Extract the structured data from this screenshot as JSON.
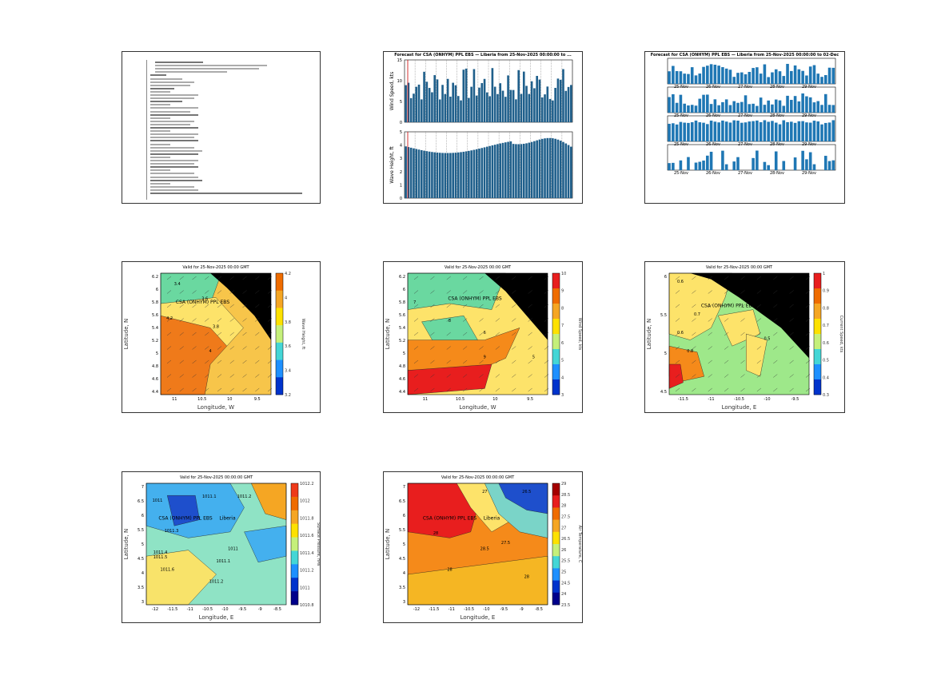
{
  "report_panel": {
    "lines": [
      {
        "w": 60
      },
      {
        "w": 140
      },
      {
        "w": 130
      },
      {
        "w": 90
      },
      {
        "w": 20
      },
      {
        "w": 40
      },
      {
        "w": 55
      },
      {
        "w": 50
      },
      {
        "w": 30
      },
      {
        "w": 25
      },
      {
        "w": 60
      },
      {
        "w": 55
      },
      {
        "w": 40
      },
      {
        "w": 25
      },
      {
        "w": 60
      },
      {
        "w": 50
      },
      {
        "w": 60
      },
      {
        "w": 25
      },
      {
        "w": 55
      },
      {
        "w": 50
      },
      {
        "w": 60
      },
      {
        "w": 25
      },
      {
        "w": 60
      },
      {
        "w": 55
      },
      {
        "w": 60
      },
      {
        "w": 25
      },
      {
        "w": 55
      },
      {
        "w": 65
      },
      {
        "w": 60
      },
      {
        "w": 25
      },
      {
        "w": 60
      },
      {
        "w": 55
      },
      {
        "w": 60
      },
      {
        "w": 25
      },
      {
        "w": 55
      },
      {
        "w": 60
      },
      {
        "w": 65
      },
      {
        "w": 25
      },
      {
        "w": 55
      },
      {
        "w": 60
      },
      {
        "w": 190
      }
    ]
  },
  "timeseries_panel": {
    "title": "Forecast for CSA (ONHYM) PPL EBS — Liberia from 25-Nov-2025 00:00:00 to ...",
    "wind": {
      "ylabel": "Wind Speed, kts",
      "yticks": [
        "0",
        "5",
        "10",
        "15"
      ],
      "ylim": [
        0,
        15
      ]
    },
    "wave": {
      "ylabel": "Wave Height, ft",
      "yticks": [
        "0",
        "1",
        "2",
        "3",
        "4",
        "5"
      ],
      "ylim": [
        0,
        5
      ]
    }
  },
  "multi_bar_panel": {
    "title": "Forecast for CSA (ONHYM) PPL EBS — Liberia from 25-Nov-2025 00:00:00 to 02-Dec",
    "tick_labels": [
      "25-Nov",
      "26-Nov",
      "27-Nov",
      "28-Nov",
      "29-Nov"
    ]
  },
  "map_panels": [
    {
      "id": "wave-height-map",
      "title": "Valid for 25-Nov-2025 00:00 GMT",
      "xlabel": "Longitude, W",
      "ylabel": "Latitude, N",
      "xticks": [
        "11",
        "10.5",
        "10",
        "9.5"
      ],
      "yticks": [
        "6.2",
        "6",
        "5.8",
        "5.6",
        "5.4",
        "5.2",
        "5",
        "4.8",
        "4.6",
        "4.4"
      ],
      "cbar_ticks": [
        "4.2",
        "4",
        "3.8",
        "3.6",
        "3.4",
        "3.2"
      ],
      "cbar_label": "Wave Height, ft",
      "station_label": "CSA (ONHYM) PPL EBS",
      "contour_labels": [
        "3.4",
        "3.6",
        "4.2",
        "3.8",
        "4"
      ]
    },
    {
      "id": "wind-speed-map",
      "title": "Valid for 25-Nov-2025 00:00 GMT",
      "xlabel": "Longitude, W",
      "ylabel": "Latitude, N",
      "xticks": [
        "11",
        "10.5",
        "10",
        "9.5"
      ],
      "yticks": [
        "6.2",
        "6",
        "5.8",
        "5.6",
        "5.4",
        "5.2",
        "5",
        "4.8",
        "4.6",
        "4.4"
      ],
      "cbar_ticks": [
        "10",
        "9",
        "8",
        "7",
        "6",
        "5",
        "4",
        "3"
      ],
      "cbar_label": "Wind Speed, kts",
      "station_label": "CSA (ONHYM) PPL EBS",
      "contour_labels": [
        "7",
        "8",
        "6",
        "9",
        "5"
      ]
    },
    {
      "id": "current-speed-map",
      "title": "Valid for 25-Nov-2025 00:00 GMT",
      "xlabel": "Longitude, E",
      "ylabel": "Latitude, N",
      "xticks": [
        "-11.5",
        "-11",
        "-10.5",
        "-10",
        "-9.5"
      ],
      "yticks": [
        "6",
        "5.5",
        "5",
        "4.5"
      ],
      "cbar_ticks": [
        "1",
        "0.9",
        "0.8",
        "0.7",
        "0.6",
        "0.5",
        "0.4",
        "0.3"
      ],
      "cbar_label": "Current Speed, kts",
      "station_label": "CSA (ONHYM) PPL EBS",
      "contour_labels": [
        "0.6",
        "0.7",
        "0.6",
        "0.8",
        "0.5"
      ]
    },
    {
      "id": "pressure-map",
      "title": "Valid for 25-Nov-2025 00:00:00 GMT",
      "xlabel": "Longitude, E",
      "ylabel": "Latitude, N",
      "xticks": [
        "-12",
        "-11.5",
        "-11",
        "-10.5",
        "-10",
        "-9.5",
        "-9",
        "-8.5"
      ],
      "yticks": [
        "7",
        "6.5",
        "6",
        "5.5",
        "5",
        "4.5",
        "4",
        "3.5",
        "3"
      ],
      "cbar_ticks": [
        "1012.2",
        "1012",
        "1011.8",
        "1011.6",
        "1011.4",
        "1011.2",
        "1011",
        "1010.8"
      ],
      "cbar_label": "Surface Pressure, hPa",
      "station_label": "CSA (ONHYM) PPL EBS",
      "place_label": "Liberia",
      "contour_labels": [
        "1011",
        "1011.1",
        "1011.2",
        "1011.3",
        "1011.4",
        "1011.5",
        "1011.6",
        "1011.1",
        "1011.2",
        "1011"
      ]
    },
    {
      "id": "air-temp-map",
      "title": "Valid for 25-Nov-2025 00:00:00 GMT",
      "xlabel": "Longitude, E",
      "ylabel": "Latitude, N",
      "xticks": [
        "-12",
        "-11.5",
        "-11",
        "-10.5",
        "-10",
        "-9.5",
        "-9",
        "-8.5"
      ],
      "yticks": [
        "7",
        "6.5",
        "6",
        "5.5",
        "5",
        "4.5",
        "4",
        "3.5",
        "3"
      ],
      "cbar_ticks": [
        "29",
        "28.5",
        "28",
        "27.5",
        "27",
        "26.5",
        "26",
        "25.5",
        "25",
        "24.5",
        "24",
        "23.5"
      ],
      "cbar_label": "Air Temperature, C",
      "station_label": "CSA (ONHYM) PPL EBS",
      "place_label": "Liberia",
      "contour_labels": [
        "27",
        "26.5",
        "28",
        "28.5",
        "28",
        "27.5",
        "28"
      ]
    }
  ]
}
